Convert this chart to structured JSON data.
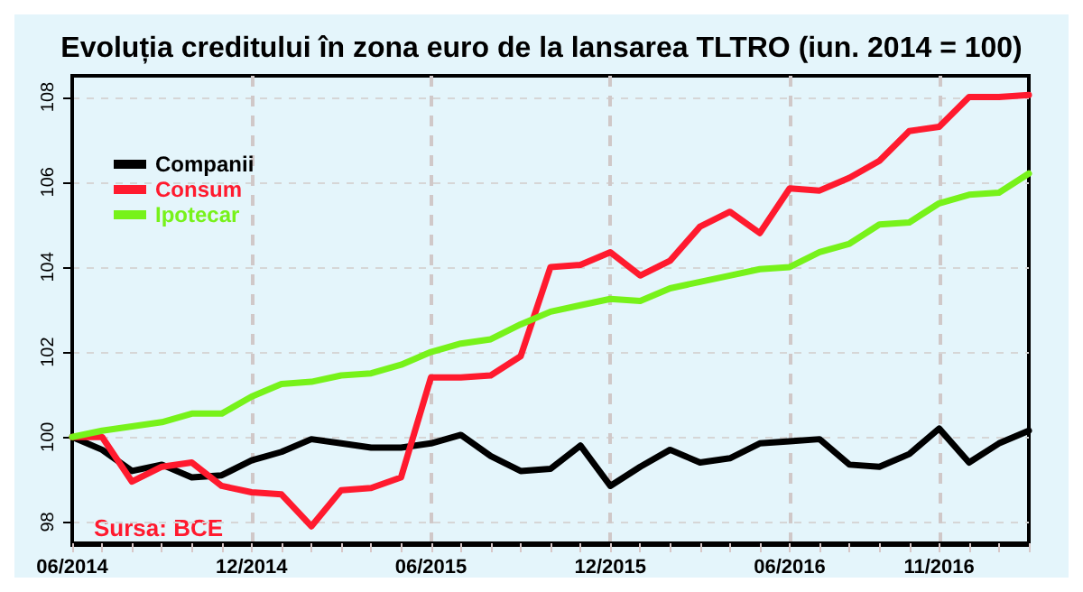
{
  "chart_data": {
    "type": "line",
    "title": "Evoluția creditului în zona euro de la lansarea TLTRO (iun. 2014 = 100)",
    "categories": [
      "06/2014",
      null,
      null,
      null,
      null,
      null,
      "12/2014",
      null,
      null,
      null,
      null,
      null,
      "06/2015",
      null,
      null,
      null,
      null,
      null,
      "12/2015",
      null,
      null,
      null,
      null,
      null,
      "06/2016",
      null,
      null,
      null,
      null,
      "11/2016",
      null,
      null,
      null
    ],
    "series": [
      {
        "name": "Companii",
        "color": "#000000",
        "values": [
          100,
          99.7,
          99.2,
          99.35,
          99.05,
          99.1,
          99.45,
          99.65,
          99.95,
          99.85,
          99.75,
          99.75,
          99.85,
          100.05,
          99.55,
          99.2,
          99.25,
          99.8,
          98.85,
          99.3,
          99.7,
          99.4,
          99.5,
          99.85,
          99.9,
          99.95,
          99.35,
          99.3,
          99.6,
          100.2,
          99.4,
          99.85,
          100.15
        ]
      },
      {
        "name": "Consum",
        "color": "#ff1a2e",
        "values": [
          100,
          100,
          98.95,
          99.3,
          99.4,
          98.85,
          98.7,
          98.65,
          97.9,
          98.75,
          98.8,
          99.05,
          101.4,
          101.4,
          101.45,
          101.9,
          104.0,
          104.05,
          104.35,
          103.8,
          104.15,
          104.95,
          105.3,
          104.8,
          105.85,
          105.8,
          106.1,
          106.5,
          107.2,
          107.3,
          108.0,
          108.0,
          108.05
        ]
      },
      {
        "name": "Ipotecar",
        "color": "#77f21a",
        "values": [
          100,
          100.15,
          100.25,
          100.35,
          100.55,
          100.55,
          100.95,
          101.25,
          101.3,
          101.45,
          101.5,
          101.7,
          102.0,
          102.2,
          102.3,
          102.65,
          102.95,
          103.1,
          103.25,
          103.2,
          103.5,
          103.65,
          103.8,
          103.95,
          104.0,
          104.35,
          104.55,
          105.0,
          105.05,
          105.5,
          105.7,
          105.75,
          106.2
        ]
      }
    ],
    "ylim": [
      97.5,
      108.5
    ],
    "yticks": [
      98,
      100,
      102,
      104,
      106,
      108
    ],
    "annotations": [
      "Sursa: BCE"
    ],
    "grid": true,
    "legend": "top left",
    "marker": "none",
    "line_style": "solid"
  }
}
